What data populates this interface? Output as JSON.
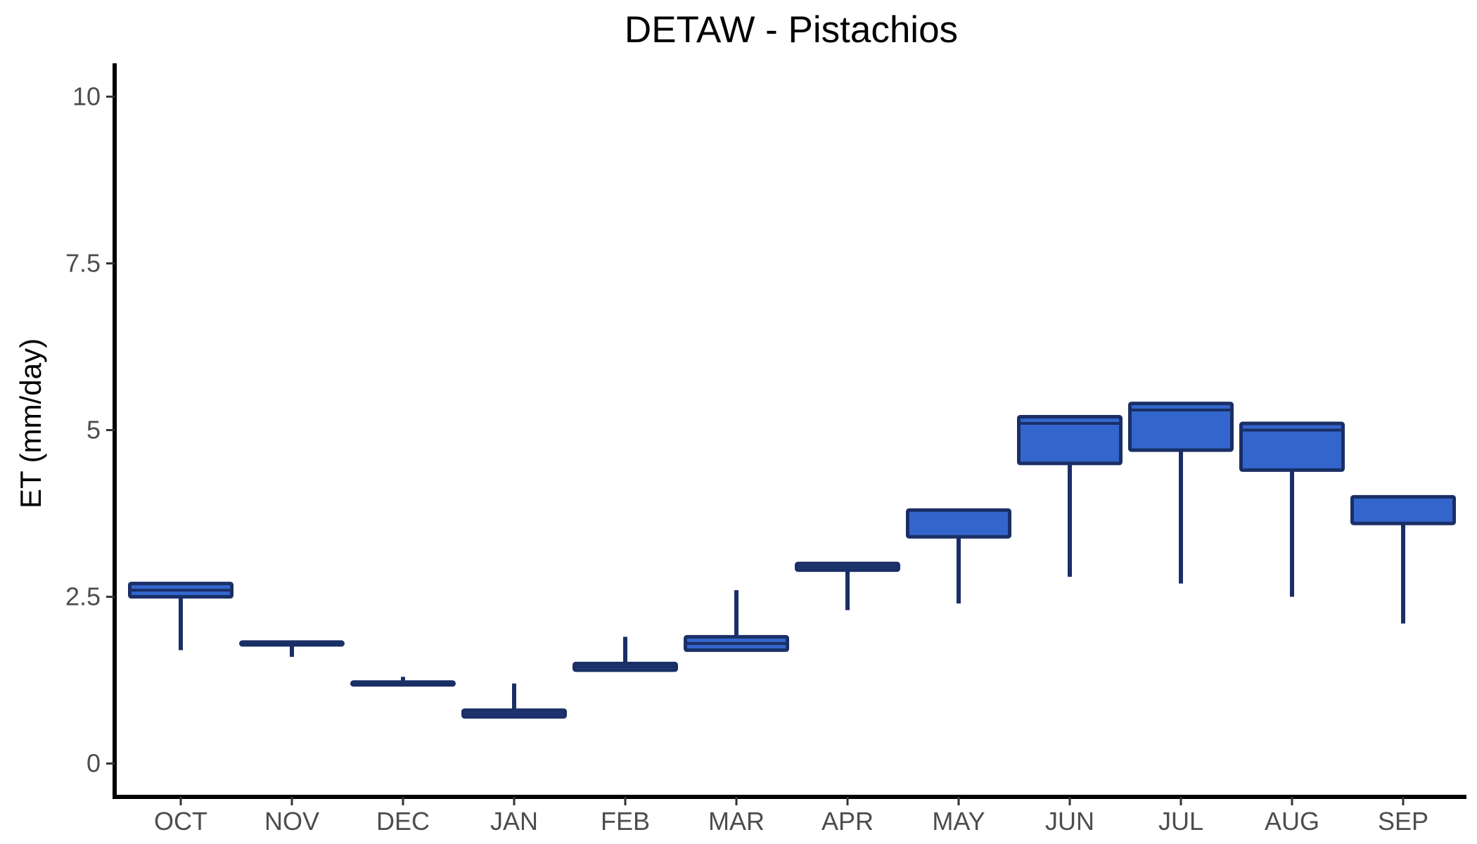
{
  "chart_data": {
    "type": "box",
    "title": "DETAW - Pistachios",
    "xlabel": "",
    "ylabel": "ET (mm/day)",
    "ylim": [
      -0.5,
      10.5
    ],
    "yticks": [
      0,
      2.5,
      5,
      7.5,
      10
    ],
    "ytick_labels": [
      "0",
      "2.5",
      "5",
      "7.5",
      "10"
    ],
    "grid": false,
    "legend": "none",
    "categories": [
      "OCT",
      "NOV",
      "DEC",
      "JAN",
      "FEB",
      "MAR",
      "APR",
      "MAY",
      "JUN",
      "JUL",
      "AUG",
      "SEP"
    ],
    "series": [
      {
        "boxes": [
          {
            "category": "OCT",
            "min": 1.7,
            "q1": 2.5,
            "median": 2.6,
            "q3": 2.7,
            "max": 2.7
          },
          {
            "category": "NOV",
            "min": 1.6,
            "q1": 1.8,
            "median": 1.8,
            "q3": 1.8,
            "max": 1.8
          },
          {
            "category": "DEC",
            "min": 1.2,
            "q1": 1.2,
            "median": 1.2,
            "q3": 1.2,
            "max": 1.3
          },
          {
            "category": "JAN",
            "min": 0.7,
            "q1": 0.7,
            "median": 0.75,
            "q3": 0.8,
            "max": 1.2
          },
          {
            "category": "FEB",
            "min": 1.4,
            "q1": 1.4,
            "median": 1.45,
            "q3": 1.5,
            "max": 1.9
          },
          {
            "category": "MAR",
            "min": 1.7,
            "q1": 1.7,
            "median": 1.8,
            "q3": 1.9,
            "max": 2.6
          },
          {
            "category": "APR",
            "min": 2.3,
            "q1": 2.9,
            "median": 2.95,
            "q3": 3.0,
            "max": 3.0
          },
          {
            "category": "MAY",
            "min": 2.4,
            "q1": 3.4,
            "median": 3.8,
            "q3": 3.8,
            "max": 3.8
          },
          {
            "category": "JUN",
            "min": 2.8,
            "q1": 4.5,
            "median": 5.1,
            "q3": 5.2,
            "max": 5.2
          },
          {
            "category": "JUL",
            "min": 2.7,
            "q1": 4.7,
            "median": 5.3,
            "q3": 5.4,
            "max": 5.4
          },
          {
            "category": "AUG",
            "min": 2.5,
            "q1": 4.4,
            "median": 5.0,
            "q3": 5.1,
            "max": 5.1
          },
          {
            "category": "SEP",
            "min": 2.1,
            "q1": 3.6,
            "median": 4.0,
            "q3": 4.0,
            "max": 4.0
          }
        ]
      }
    ],
    "colors": {
      "box_fill": "#3366cc",
      "box_stroke": "#1a2f66",
      "axis": "#000000",
      "tick_label": "#4d4d4d"
    }
  }
}
